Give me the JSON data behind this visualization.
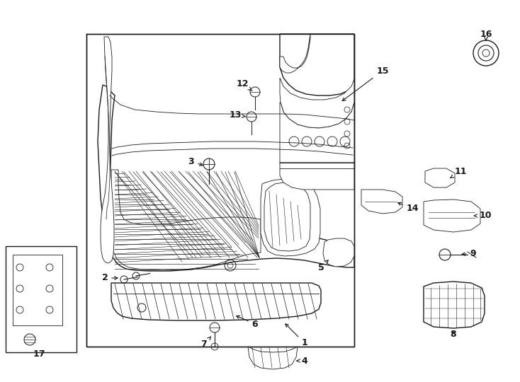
{
  "background_color": "#ffffff",
  "line_color": "#1a1a1a",
  "figsize": [
    7.34,
    5.4
  ],
  "dpi": 100,
  "lw_main": 1.0,
  "lw_thin": 0.6,
  "lw_thick": 1.4
}
